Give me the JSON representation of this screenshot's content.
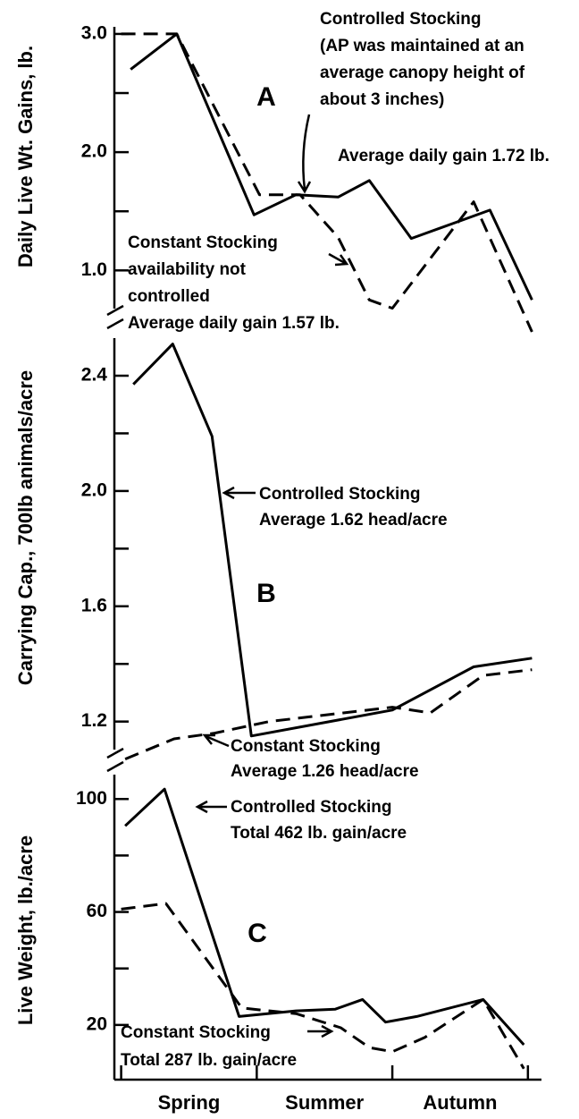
{
  "chart_data": [
    {
      "type": "line",
      "panel_label": "A",
      "y_label": "Daily Live Wt. Gains, lb.",
      "xlim": [
        -0.05,
        3.1
      ],
      "ylim": [
        0.45,
        3.06
      ],
      "yticks": [
        {
          "value": 3,
          "label": "3.0"
        },
        {
          "value": 2,
          "label": "2.0"
        },
        {
          "value": 1,
          "label": "1.0"
        }
      ],
      "minor_yticks": [
        2.5,
        1.5
      ],
      "series": [
        {
          "style": "solid",
          "color": "#000",
          "x": [
            0.07,
            0.41,
            0.98,
            1.29,
            1.6,
            1.83,
            2.14,
            2.72,
            3.03
          ],
          "values": [
            2.7,
            3.0,
            1.47,
            1.64,
            1.62,
            1.76,
            1.27,
            1.51,
            0.75
          ]
        },
        {
          "style": "dashed",
          "color": "#000",
          "x": [
            0,
            0.41,
            1.02,
            1.32,
            1.6,
            1.83,
            2.0,
            2.6,
            3.03
          ],
          "values": [
            3.0,
            3.0,
            1.64,
            1.64,
            1.28,
            0.75,
            0.68,
            1.58,
            0.48
          ]
        }
      ],
      "annotations": [
        [
          "Controlled Stocking",
          "(AP was maintained at an",
          "average canopy height of",
          "about 3 inches)"
        ],
        [
          "Average daily gain 1.72 lb."
        ],
        [
          "Constant Stocking",
          "availability not",
          "controlled",
          "Average daily gain 1.57 lb."
        ]
      ]
    },
    {
      "type": "line",
      "panel_label": "B",
      "y_label": "Carrying Cap., 700lb animals/acre",
      "xlim": [
        -0.05,
        3.1
      ],
      "ylim": [
        1.05,
        2.55
      ],
      "yticks": [
        2.4,
        {
          "value": 2,
          "label": "2.0"
        },
        1.6,
        1.2
      ],
      "minor_yticks": [
        2.2,
        1.8,
        1.4
      ],
      "series": [
        {
          "style": "solid",
          "color": "#000",
          "x": [
            0.09,
            0.38,
            0.67,
            0.96,
            2.0,
            2.6,
            3.03
          ],
          "values": [
            2.37,
            2.51,
            2.19,
            1.15,
            1.24,
            1.39,
            1.42
          ]
        },
        {
          "style": "dashed",
          "color": "#000",
          "x": [
            0.03,
            0.39,
            0.69,
            1.09,
            2.0,
            2.28,
            2.67,
            3.03
          ],
          "values": [
            1.07,
            1.14,
            1.16,
            1.2,
            1.25,
            1.23,
            1.36,
            1.38
          ]
        }
      ],
      "annotations": [
        [
          "Controlled Stocking",
          "Average 1.62 head/acre"
        ],
        [
          "Constant Stocking",
          "Average 1.26 head/acre"
        ]
      ]
    },
    {
      "type": "line",
      "panel_label": "C",
      "y_label": "Live Weight, lb./acre",
      "xlim": [
        -0.05,
        3.1
      ],
      "ylim": [
        0,
        108
      ],
      "yticks": [
        100,
        60,
        20
      ],
      "minor_yticks": [
        80,
        40
      ],
      "xticks": [
        0,
        1,
        2,
        3
      ],
      "categories": [
        "Spring",
        "Summer",
        "Autumn"
      ],
      "series": [
        {
          "style": "solid",
          "color": "#000",
          "x": [
            0.03,
            0.32,
            0.87,
            1.29,
            1.58,
            1.78,
            1.95,
            2.18,
            2.67,
            2.97
          ],
          "values": [
            90.5,
            103.5,
            23,
            25,
            25.6,
            29,
            21,
            23,
            29,
            13
          ]
        },
        {
          "style": "dashed",
          "color": "#000",
          "x": [
            0,
            0.33,
            0.89,
            1.29,
            1.62,
            1.83,
            2.0,
            2.24,
            2.67,
            2.97
          ],
          "values": [
            61,
            63,
            26,
            24,
            19,
            12,
            10.5,
            15.6,
            29,
            4.5
          ]
        }
      ],
      "annotations": [
        [
          "Controlled Stocking",
          "Total 462 lb. gain/acre"
        ],
        [
          "Constant Stocking",
          "Total 287 lb. gain/acre"
        ]
      ]
    }
  ]
}
